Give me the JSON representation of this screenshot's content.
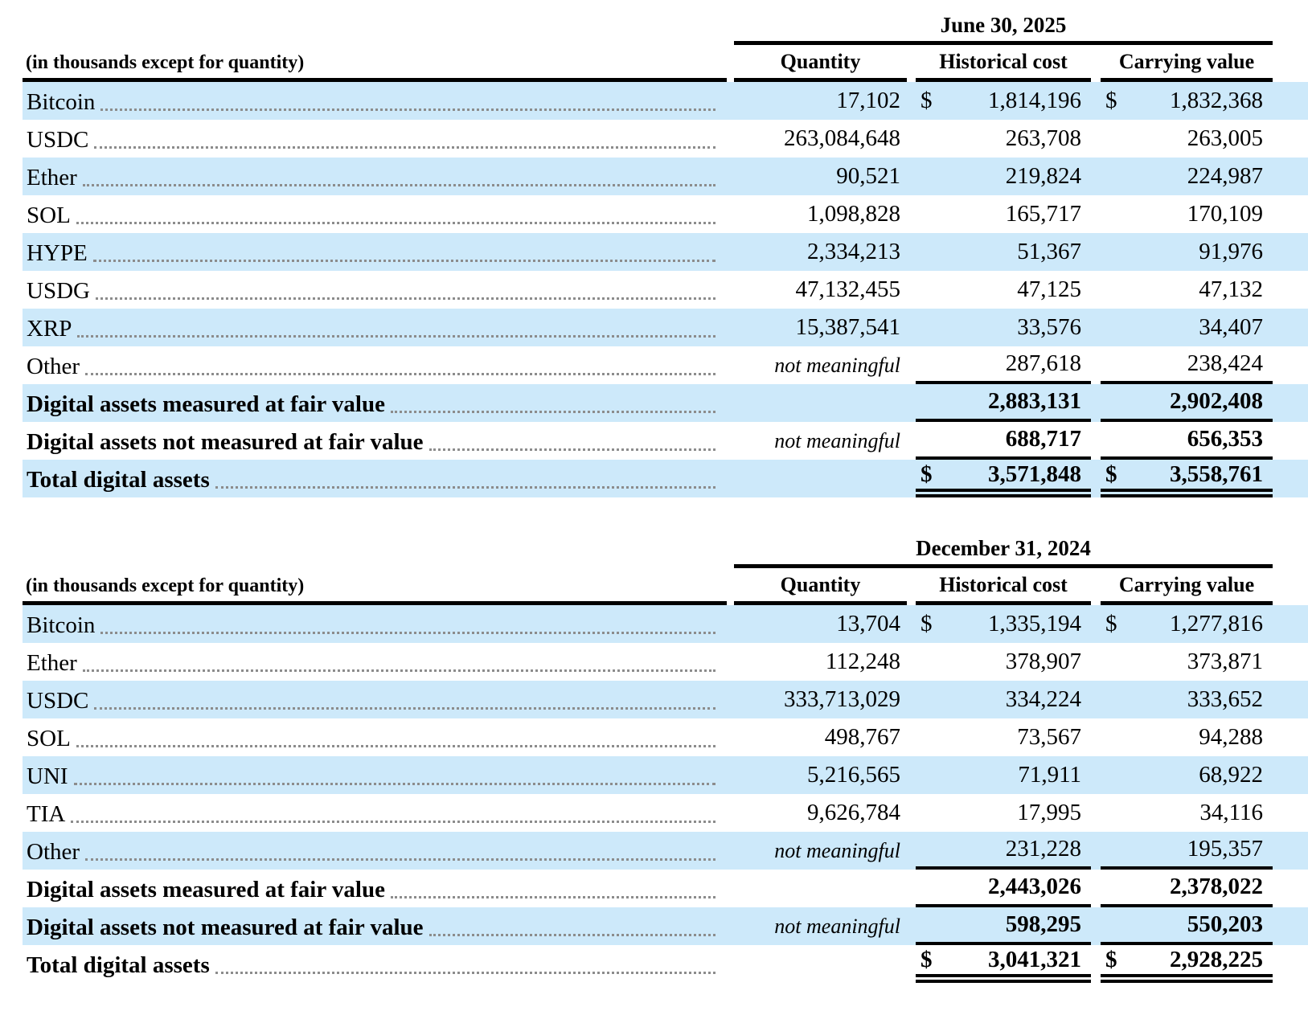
{
  "colors": {
    "row_shade": "#cde9fa",
    "rule_lines": "#000000",
    "leader_dots": "#8c8c8c"
  },
  "tables": [
    {
      "period_header": "June 30, 2025",
      "unit_note": "(in thousands except for quantity)",
      "columns": [
        "Quantity",
        "Historical cost",
        "Carrying value"
      ],
      "currency_symbol": "$",
      "rows": [
        {
          "label": "Bitcoin",
          "quantity": "17,102",
          "historical_cost": "1,814,196",
          "carrying_value": "1,832,368",
          "dollar": true
        },
        {
          "label": "USDC",
          "quantity": "263,084,648",
          "historical_cost": "263,708",
          "carrying_value": "263,005"
        },
        {
          "label": "Ether",
          "quantity": "90,521",
          "historical_cost": "219,824",
          "carrying_value": "224,987"
        },
        {
          "label": "SOL",
          "quantity": "1,098,828",
          "historical_cost": "165,717",
          "carrying_value": "170,109"
        },
        {
          "label": "HYPE",
          "quantity": "2,334,213",
          "historical_cost": "51,367",
          "carrying_value": "91,976"
        },
        {
          "label": "USDG",
          "quantity": "47,132,455",
          "historical_cost": "47,125",
          "carrying_value": "47,132"
        },
        {
          "label": "XRP",
          "quantity": "15,387,541",
          "historical_cost": "33,576",
          "carrying_value": "34,407"
        },
        {
          "label": "Other",
          "quantity": "not meaningful",
          "quantity_italic": true,
          "historical_cost": "287,618",
          "carrying_value": "238,424",
          "rule": "single"
        },
        {
          "label": "Digital assets measured at fair value",
          "quantity": "",
          "historical_cost": "2,883,131",
          "carrying_value": "2,902,408",
          "bold": true,
          "rule": "single"
        },
        {
          "label": "Digital assets not measured at fair value",
          "quantity": "not meaningful",
          "quantity_italic": true,
          "historical_cost": "688,717",
          "carrying_value": "656,353",
          "bold": true,
          "rule": "single"
        },
        {
          "label": "Total digital assets",
          "quantity": "",
          "historical_cost": "3,571,848",
          "carrying_value": "3,558,761",
          "bold": true,
          "dollar": true,
          "rule": "double"
        }
      ]
    },
    {
      "period_header": "December 31, 2024",
      "unit_note": "(in thousands except for quantity)",
      "columns": [
        "Quantity",
        "Historical cost",
        "Carrying value"
      ],
      "currency_symbol": "$",
      "rows": [
        {
          "label": "Bitcoin",
          "quantity": "13,704",
          "historical_cost": "1,335,194",
          "carrying_value": "1,277,816",
          "dollar": true
        },
        {
          "label": "Ether",
          "quantity": "112,248",
          "historical_cost": "378,907",
          "carrying_value": "373,871"
        },
        {
          "label": "USDC",
          "quantity": "333,713,029",
          "historical_cost": "334,224",
          "carrying_value": "333,652"
        },
        {
          "label": "SOL",
          "quantity": "498,767",
          "historical_cost": "73,567",
          "carrying_value": "94,288"
        },
        {
          "label": "UNI",
          "quantity": "5,216,565",
          "historical_cost": "71,911",
          "carrying_value": "68,922"
        },
        {
          "label": "TIA",
          "quantity": "9,626,784",
          "historical_cost": "17,995",
          "carrying_value": "34,116"
        },
        {
          "label": "Other",
          "quantity": "not meaningful",
          "quantity_italic": true,
          "historical_cost": "231,228",
          "carrying_value": "195,357",
          "rule": "single"
        },
        {
          "label": "Digital assets measured at fair value",
          "quantity": "",
          "historical_cost": "2,443,026",
          "carrying_value": "2,378,022",
          "bold": true,
          "rule": "single"
        },
        {
          "label": "Digital assets not measured at fair value",
          "quantity": "not meaningful",
          "quantity_italic": true,
          "historical_cost": "598,295",
          "carrying_value": "550,203",
          "bold": true,
          "rule": "single"
        },
        {
          "label": "Total digital assets",
          "quantity": "",
          "historical_cost": "3,041,321",
          "carrying_value": "2,928,225",
          "bold": true,
          "dollar": true,
          "rule": "double"
        }
      ]
    }
  ]
}
